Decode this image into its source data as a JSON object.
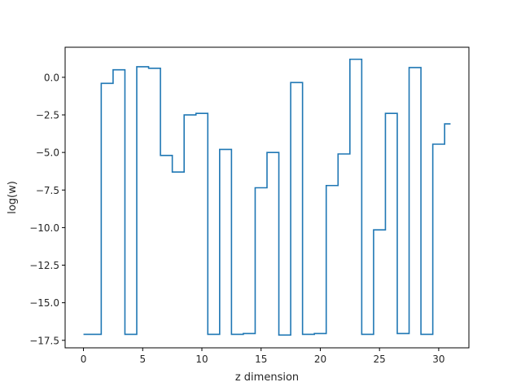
{
  "chart_data": {
    "type": "line",
    "step": "mid",
    "title": "",
    "xlabel": "z dimension",
    "ylabel": "log(w)",
    "xlim": [
      -1.55,
      32.55
    ],
    "ylim": [
      -18.0,
      2.0
    ],
    "xticks": [
      0,
      5,
      10,
      15,
      20,
      25,
      30
    ],
    "xtick_labels": [
      "0",
      "5",
      "10",
      "15",
      "20",
      "25",
      "30"
    ],
    "yticks": [
      0.0,
      -2.5,
      -5.0,
      -7.5,
      -10.0,
      -12.5,
      -15.0,
      -17.5
    ],
    "ytick_labels": [
      "0.0",
      "−2.5",
      "−5.0",
      "−7.5",
      "−10.0",
      "−12.5",
      "−15.0",
      "−17.5"
    ],
    "grid": false,
    "legend": null,
    "series": [
      {
        "color": "#1f77b4",
        "x": [
          0,
          1,
          2,
          3,
          4,
          5,
          6,
          7,
          8,
          9,
          10,
          11,
          12,
          13,
          14,
          15,
          16,
          17,
          18,
          19,
          20,
          21,
          22,
          23,
          24,
          25,
          26,
          27,
          28,
          29,
          30,
          31
        ],
        "values": [
          -17.1,
          -17.1,
          -0.4,
          0.5,
          -17.1,
          0.7,
          0.6,
          -5.2,
          -6.3,
          -2.5,
          -2.4,
          -17.1,
          -4.8,
          -17.1,
          -17.05,
          -7.35,
          -5.0,
          -17.15,
          -0.35,
          -17.1,
          -17.05,
          -7.2,
          -5.1,
          1.2,
          -17.1,
          -10.15,
          -2.4,
          -17.05,
          0.65,
          -17.1,
          -4.45,
          -3.1
        ]
      }
    ]
  }
}
